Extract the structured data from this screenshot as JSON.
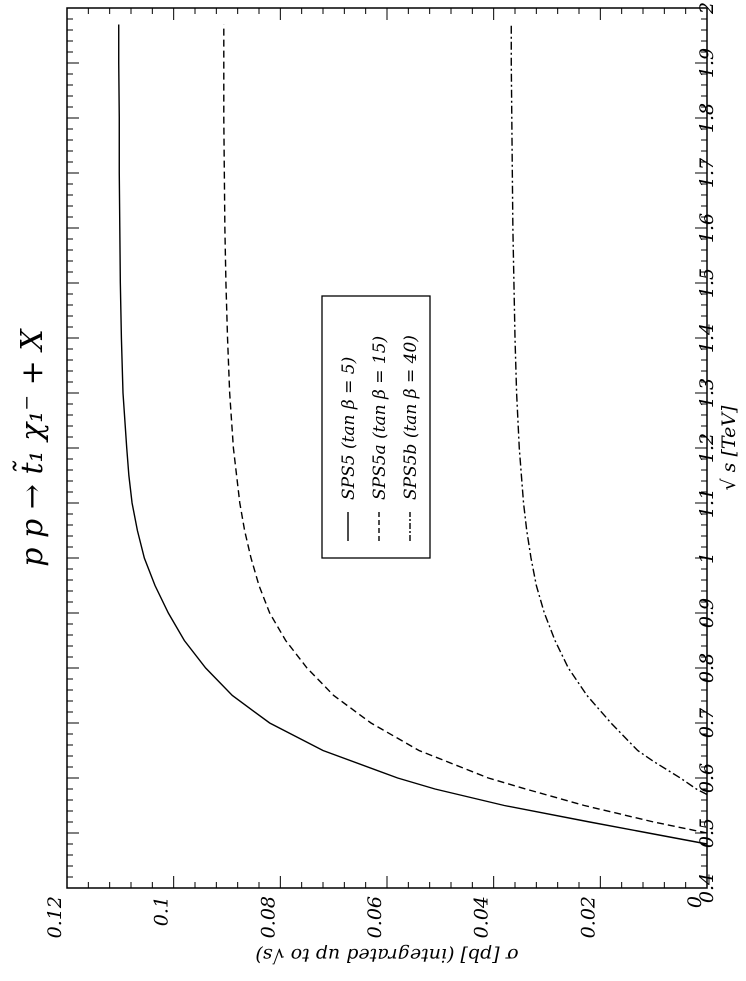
{
  "chart_data": {
    "type": "line",
    "orientation": "rotated-90",
    "title": "p p → t̃₁ χ₁⁻ + X",
    "xlabel": "√ s  [TeV]",
    "ylabel": "σ [pb] (integrated up to √s)",
    "xlim": [
      0.4,
      2.0
    ],
    "ylim": [
      0,
      0.12
    ],
    "x_ticks": [
      "0.4",
      "0.5",
      "0.6",
      "0.7",
      "0.8",
      "0.9",
      "1",
      "1.1",
      "1.2",
      "1.3",
      "1.4",
      "1.5",
      "1.6",
      "1.7",
      "1.8",
      "1.9",
      "2"
    ],
    "y_ticks": [
      "0",
      "0.02",
      "0.04",
      "0.06",
      "0.08",
      "0.1",
      "0.12"
    ],
    "grid": false,
    "legend_position": "center",
    "series": [
      {
        "name": "SPS5",
        "legend_label": "SPS5  (tan β = 5)",
        "style": "solid",
        "x": [
          0.48,
          0.5,
          0.52,
          0.55,
          0.58,
          0.6,
          0.65,
          0.7,
          0.75,
          0.8,
          0.85,
          0.9,
          0.95,
          1.0,
          1.05,
          1.1,
          1.15,
          1.2,
          1.3,
          1.4,
          1.5,
          1.6,
          1.7,
          1.8,
          1.9,
          1.97
        ],
        "values": [
          0,
          0.011,
          0.022,
          0.038,
          0.051,
          0.058,
          0.072,
          0.082,
          0.089,
          0.094,
          0.098,
          0.101,
          0.1035,
          0.1055,
          0.1068,
          0.1078,
          0.1084,
          0.1088,
          0.1095,
          0.1098,
          0.11,
          0.1101,
          0.1102,
          0.1102,
          0.1103,
          0.1103
        ]
      },
      {
        "name": "SPS5a",
        "legend_label": "SPS5a  (tan β = 15)",
        "style": "dashed",
        "x": [
          0.5,
          0.52,
          0.55,
          0.58,
          0.6,
          0.65,
          0.7,
          0.75,
          0.8,
          0.85,
          0.9,
          0.95,
          1.0,
          1.05,
          1.1,
          1.2,
          1.3,
          1.4,
          1.5,
          1.6,
          1.7,
          1.8,
          1.9,
          1.97
        ],
        "values": [
          0,
          0.01,
          0.023,
          0.034,
          0.041,
          0.054,
          0.063,
          0.07,
          0.075,
          0.079,
          0.082,
          0.084,
          0.0855,
          0.0867,
          0.0876,
          0.0888,
          0.0895,
          0.0899,
          0.0902,
          0.0904,
          0.0905,
          0.0906,
          0.0906,
          0.0906
        ]
      },
      {
        "name": "SPS5b",
        "legend_label": "SPS5b  (tan β = 40)",
        "style": "dashdot",
        "x": [
          0.57,
          0.58,
          0.6,
          0.63,
          0.65,
          0.7,
          0.75,
          0.8,
          0.85,
          0.9,
          0.95,
          1.0,
          1.05,
          1.1,
          1.2,
          1.3,
          1.4,
          1.5,
          1.6,
          1.7,
          1.8,
          1.9,
          1.97
        ],
        "values": [
          0,
          0.002,
          0.005,
          0.01,
          0.013,
          0.018,
          0.0225,
          0.026,
          0.0285,
          0.0305,
          0.032,
          0.033,
          0.0338,
          0.0344,
          0.0352,
          0.0357,
          0.036,
          0.0362,
          0.0364,
          0.0365,
          0.0366,
          0.0367,
          0.0367
        ]
      }
    ]
  }
}
